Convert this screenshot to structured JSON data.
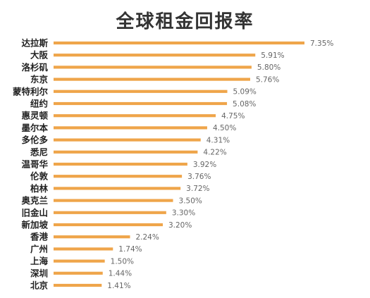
{
  "chart_data": {
    "type": "bar",
    "orientation": "horizontal",
    "title": "全球租金回报率",
    "categories": [
      "达拉斯",
      "大阪",
      "洛杉矶",
      "东京",
      "蒙特利尔",
      "纽约",
      "惠灵顿",
      "墨尔本",
      "多伦多",
      "悉尼",
      "温哥华",
      "伦敦",
      "柏林",
      "奥克兰",
      "旧金山",
      "新加坡",
      "香港",
      "广州",
      "上海",
      "深圳",
      "北京"
    ],
    "values": [
      7.35,
      5.91,
      5.8,
      5.76,
      5.09,
      5.08,
      4.75,
      4.5,
      4.31,
      4.22,
      3.92,
      3.76,
      3.72,
      3.5,
      3.3,
      3.2,
      2.24,
      1.74,
      1.5,
      1.44,
      1.41
    ],
    "value_labels": [
      "7.35%",
      "5.91%",
      "5.80%",
      "5.76%",
      "5.09%",
      "5.08%",
      "4.75%",
      "4.50%",
      "4.31%",
      "4.22%",
      "3.92%",
      "3.76%",
      "3.72%",
      "3.50%",
      "3.30%",
      "3.20%",
      "2.24%",
      "1.74%",
      "1.50%",
      "1.44%",
      "1.41%"
    ],
    "unit": "%",
    "xlim": [
      0,
      7.35
    ],
    "bar_color": "#EFA54A",
    "grid": false,
    "legend": false
  }
}
